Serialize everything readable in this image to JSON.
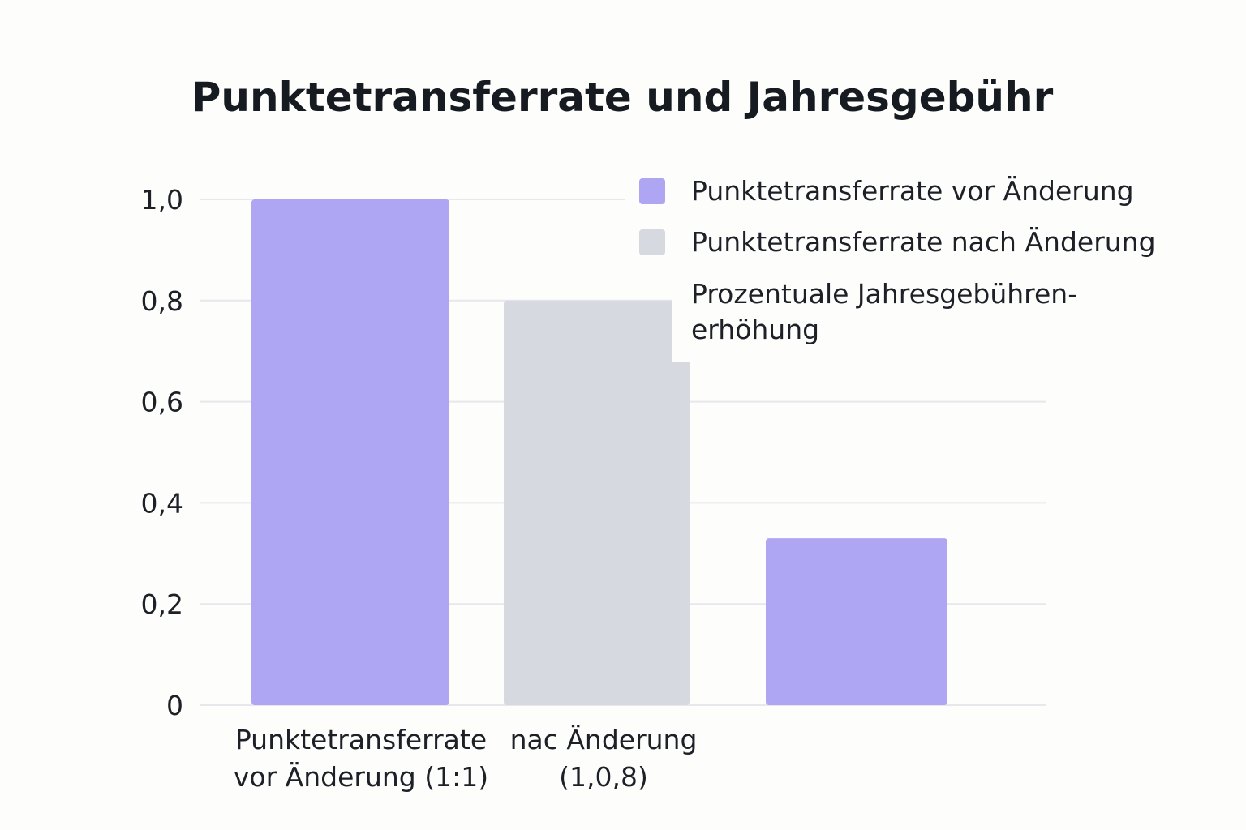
{
  "chart_data": {
    "type": "bar",
    "title": "Punktetransferrate und Jahresgebühr",
    "xlabel": "",
    "ylabel": "",
    "ylim": [
      0,
      1.0
    ],
    "y_ticks": [
      "0",
      "0,2",
      "0,4",
      "0,6",
      "0,8",
      "1,0"
    ],
    "y_tick_values": [
      0,
      0.2,
      0.4,
      0.6,
      0.8,
      1.0
    ],
    "grid": true,
    "legend_position": "top-right",
    "categories": [
      [
        "Punktetransferrate",
        "vor Änderung (1:1)"
      ],
      [
        "nac Änderung",
        "(1,0,8)"
      ],
      []
    ],
    "bars": [
      {
        "value": 1.0,
        "color": "#aea6f2"
      },
      {
        "value": 0.8,
        "color": "#d7d9e0"
      },
      {
        "value": 0.33,
        "color": "#aea6f2"
      }
    ],
    "legend": [
      {
        "lines": [
          "Punktetransferrate vor Änderung"
        ],
        "color": "#aea6f2"
      },
      {
        "lines": [
          "Punktetransferrate nach Änderung"
        ],
        "color": "#d7d9e0"
      },
      {
        "lines": [
          "Prozentuale Jahresgebühren-",
          "erhöhung"
        ],
        "color": null
      }
    ]
  }
}
